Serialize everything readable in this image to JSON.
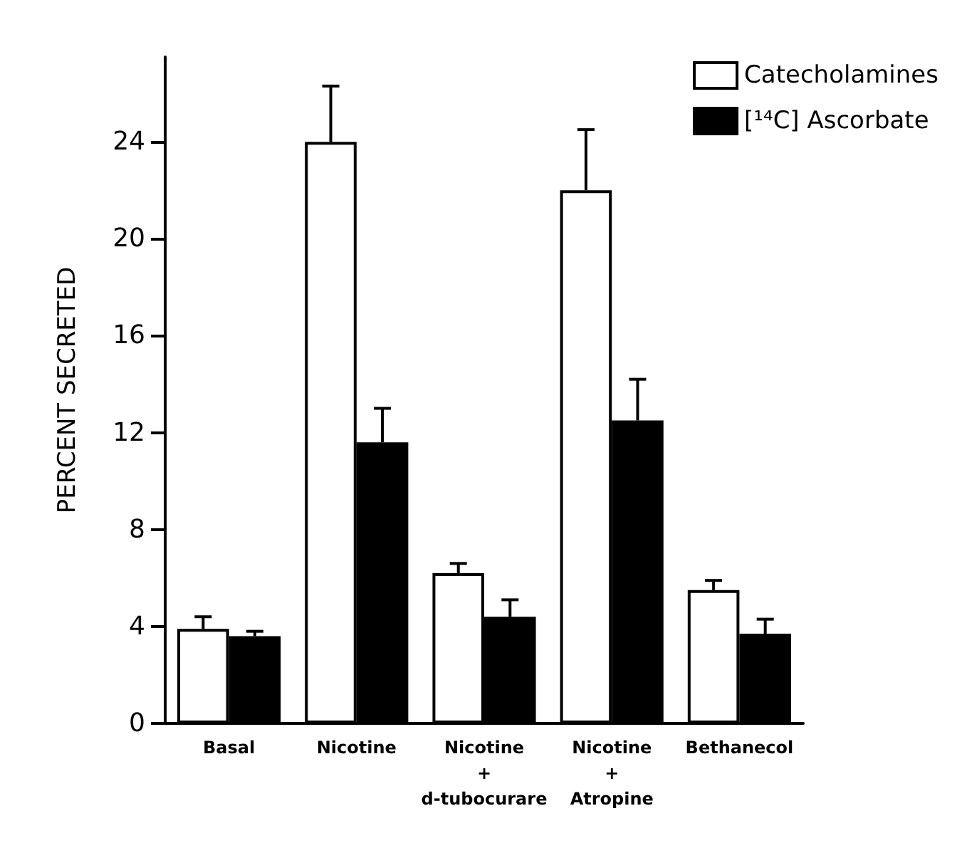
{
  "chart_data": {
    "type": "bar",
    "ylabel": "PERCENT SECRETED",
    "categories": [
      "Basal",
      "Nicotine",
      "Nicotine\n+\nd-tubocurare",
      "Nicotine\n+\nAtropine",
      "Bethanecol"
    ],
    "series": [
      {
        "name": "Catecholamines",
        "color": "#ffffff",
        "values": [
          3.9,
          24.0,
          6.2,
          22.0,
          5.5
        ],
        "errors": [
          [
            3.9,
            4.4
          ],
          [
            24.0,
            26.3
          ],
          [
            6.2,
            6.6
          ],
          [
            22.0,
            24.5
          ],
          [
            5.5,
            5.9
          ]
        ]
      },
      {
        "name": "[¹⁴C] Ascorbate",
        "color": "#000000",
        "values": [
          3.6,
          11.6,
          4.4,
          12.5,
          3.7
        ],
        "errors": [
          [
            3.6,
            3.8
          ],
          [
            11.6,
            13.0
          ],
          [
            4.4,
            5.1
          ],
          [
            12.5,
            14.2
          ],
          [
            3.7,
            4.3
          ]
        ]
      }
    ],
    "ylim": [
      0,
      27.5
    ],
    "yticks": [
      0,
      4,
      8,
      12,
      16,
      20,
      24
    ],
    "grid": false,
    "legend": "top right"
  }
}
